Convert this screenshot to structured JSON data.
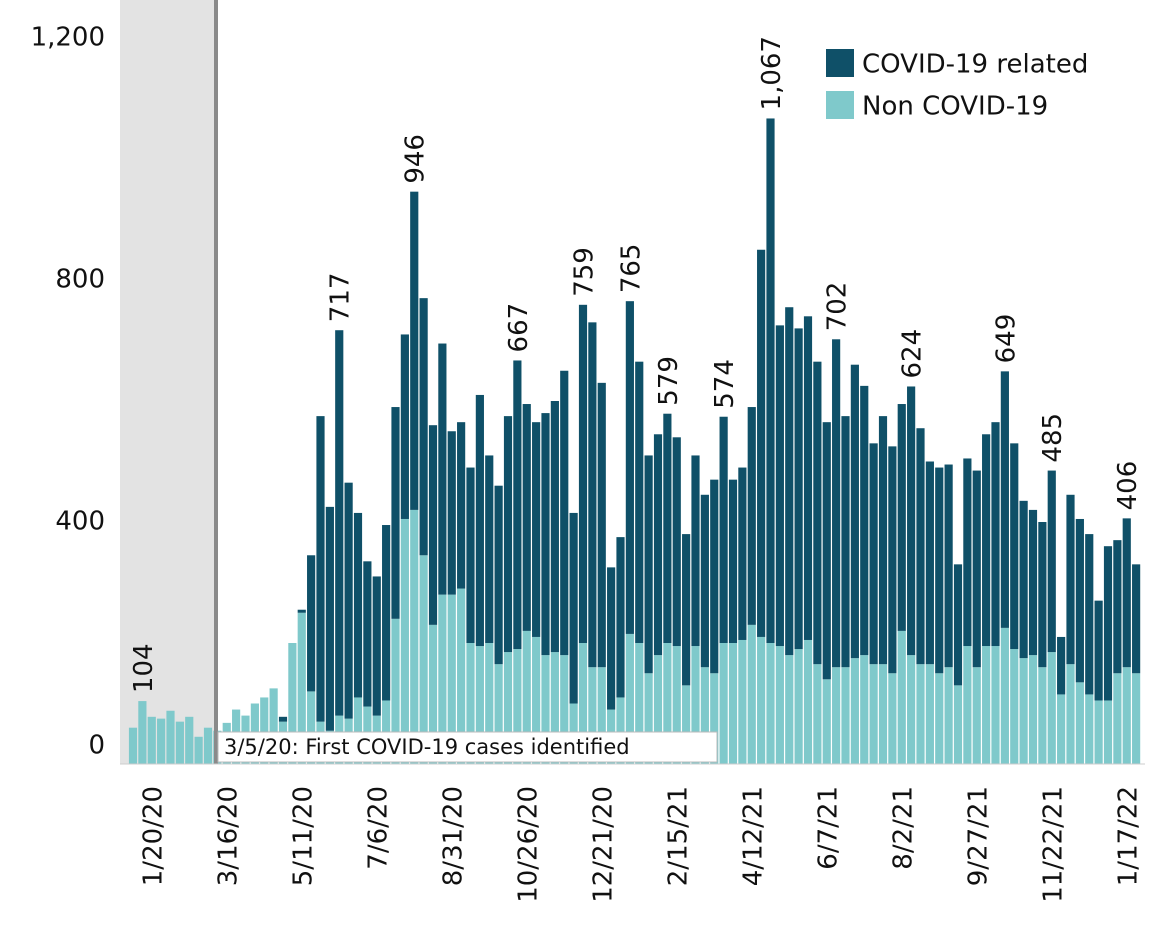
{
  "chart_data": {
    "type": "stacked-bar",
    "categories": [
      null,
      null,
      "1/20/20",
      null,
      null,
      null,
      null,
      null,
      null,
      null,
      "3/16/20",
      null,
      null,
      null,
      null,
      null,
      null,
      null,
      "5/11/20",
      null,
      null,
      null,
      null,
      null,
      null,
      null,
      "7/6/20",
      null,
      null,
      null,
      null,
      null,
      null,
      null,
      "8/31/20",
      null,
      null,
      null,
      null,
      null,
      null,
      null,
      "10/26/20",
      null,
      null,
      null,
      null,
      null,
      null,
      null,
      "12/21/20",
      null,
      null,
      null,
      null,
      null,
      null,
      null,
      "2/15/21",
      null,
      null,
      null,
      null,
      null,
      null,
      null,
      "4/12/21",
      null,
      null,
      null,
      null,
      null,
      null,
      null,
      "6/7/21",
      null,
      null,
      null,
      null,
      null,
      null,
      null,
      "8/2/21",
      null,
      null,
      null,
      null,
      null,
      null,
      null,
      "9/27/21",
      null,
      null,
      null,
      null,
      null,
      null,
      null,
      "11/22/21",
      null,
      null,
      null,
      null,
      null,
      null,
      null,
      "1/17/22",
      null
    ],
    "series": [
      {
        "name": "COVID-19 related",
        "color": "#0f5068",
        "values": [
          0,
          0,
          0,
          0,
          0,
          0,
          0,
          0,
          0,
          0,
          0,
          0,
          0,
          0,
          0,
          0,
          8,
          0,
          5,
          225,
          505,
          370,
          637,
          390,
          305,
          240,
          230,
          290,
          350,
          305,
          526,
          425,
          330,
          415,
          270,
          275,
          290,
          415,
          310,
          295,
          390,
          477,
          375,
          355,
          400,
          415,
          470,
          315,
          559,
          570,
          470,
          235,
          265,
          550,
          465,
          360,
          365,
          379,
          345,
          250,
          315,
          285,
          320,
          374,
          270,
          285,
          360,
          640,
          867,
          530,
          575,
          530,
          535,
          500,
          425,
          542,
          415,
          485,
          445,
          365,
          410,
          375,
          375,
          444,
          390,
          335,
          340,
          335,
          200,
          310,
          325,
          350,
          370,
          424,
          340,
          260,
          240,
          240,
          300,
          95,
          280,
          270,
          265,
          165,
          255,
          220,
          246,
          180
        ]
      },
      {
        "name": "Non COVID-19",
        "color": "#7fc9cb",
        "values": [
          60,
          104,
          78,
          75,
          88,
          70,
          78,
          45,
          60,
          55,
          68,
          90,
          80,
          100,
          110,
          125,
          70,
          200,
          250,
          120,
          70,
          55,
          80,
          75,
          110,
          95,
          80,
          105,
          240,
          405,
          420,
          345,
          230,
          280,
          280,
          290,
          200,
          195,
          200,
          165,
          185,
          190,
          220,
          210,
          180,
          185,
          180,
          100,
          200,
          160,
          160,
          90,
          110,
          215,
          200,
          150,
          180,
          200,
          195,
          130,
          195,
          160,
          150,
          200,
          200,
          205,
          230,
          210,
          200,
          195,
          180,
          190,
          205,
          165,
          140,
          160,
          160,
          175,
          180,
          165,
          165,
          150,
          220,
          180,
          165,
          165,
          150,
          160,
          130,
          195,
          160,
          195,
          195,
          225,
          190,
          175,
          180,
          160,
          185,
          115,
          165,
          135,
          115,
          105,
          105,
          150,
          160,
          150
        ]
      }
    ],
    "total_labels": [
      null,
      "104",
      null,
      null,
      null,
      null,
      null,
      null,
      null,
      null,
      null,
      null,
      null,
      null,
      null,
      null,
      null,
      null,
      null,
      null,
      null,
      null,
      "717",
      null,
      null,
      null,
      null,
      null,
      null,
      null,
      "946",
      null,
      null,
      null,
      null,
      null,
      null,
      null,
      null,
      null,
      null,
      "667",
      null,
      null,
      null,
      null,
      null,
      null,
      "759",
      null,
      null,
      null,
      null,
      "765",
      null,
      null,
      null,
      "579",
      null,
      null,
      null,
      null,
      null,
      "574",
      null,
      null,
      null,
      null,
      "1,067",
      null,
      null,
      null,
      null,
      null,
      null,
      "702",
      null,
      null,
      null,
      null,
      null,
      null,
      null,
      "624",
      null,
      null,
      null,
      null,
      null,
      null,
      null,
      null,
      null,
      "649",
      null,
      null,
      null,
      null,
      "485",
      null,
      null,
      null,
      null,
      null,
      null,
      null,
      "406",
      null
    ],
    "annotation": "3/5/20: First COVID-19 cases identified",
    "ylim": [
      0,
      1200
    ],
    "yticks": [
      0,
      400,
      800,
      {
        "value": 1200,
        "label": "1,200"
      }
    ],
    "grid": false
  }
}
